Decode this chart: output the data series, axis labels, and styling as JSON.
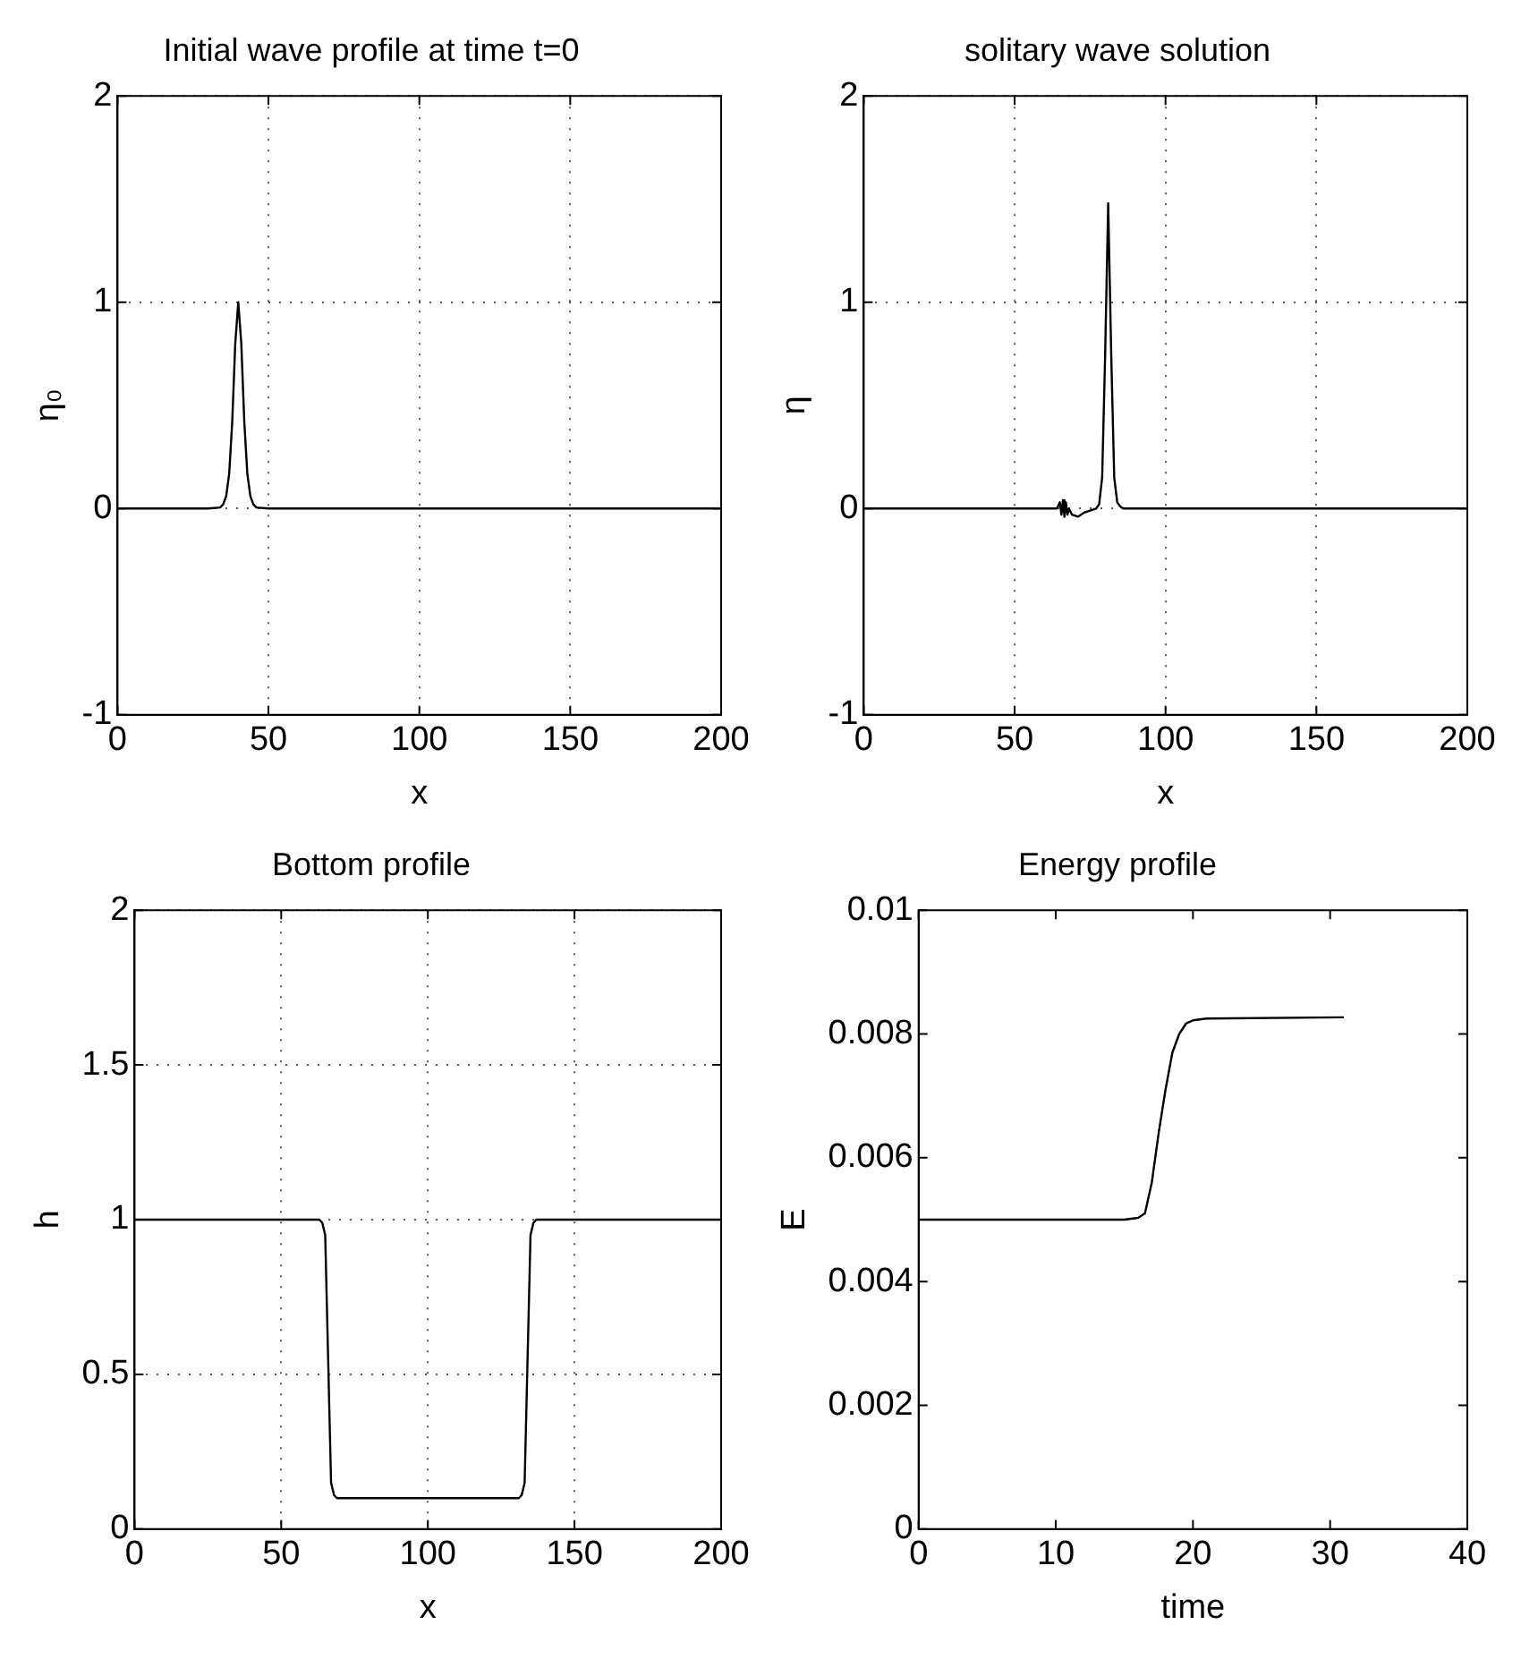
{
  "chart_data": [
    {
      "type": "line",
      "title": "Initial wave profile at time t=0",
      "xlabel": "x",
      "ylabel": "η₀",
      "xlim": [
        0,
        200
      ],
      "ylim": [
        -1,
        2
      ],
      "xticks": [
        0,
        50,
        100,
        150,
        200
      ],
      "yticks": [
        -1,
        0,
        1,
        2
      ],
      "grid": true,
      "marker": "none",
      "line_style": "solid",
      "series": [
        {
          "color": "#000000",
          "x": [
            0,
            30,
            34,
            35,
            36,
            37,
            38,
            39,
            40,
            41,
            42,
            43,
            44,
            45,
            46,
            50,
            200
          ],
          "values": [
            0,
            0,
            0.005,
            0.02,
            0.06,
            0.17,
            0.42,
            0.8,
            1,
            0.8,
            0.42,
            0.17,
            0.06,
            0.02,
            0.005,
            0,
            0
          ]
        }
      ]
    },
    {
      "type": "line",
      "title": "solitary wave solution",
      "xlabel": "x",
      "ylabel": "η",
      "xlim": [
        0,
        200
      ],
      "ylim": [
        -1,
        2
      ],
      "xticks": [
        0,
        50,
        100,
        150,
        200
      ],
      "yticks": [
        -1,
        0,
        1,
        2
      ],
      "grid": true,
      "marker": "none",
      "line_style": "solid",
      "series": [
        {
          "color": "#000000",
          "x": [
            0,
            64,
            65,
            65.5,
            66,
            66.5,
            67,
            67.5,
            68,
            69,
            71,
            73,
            75,
            77,
            78,
            79,
            80,
            81,
            82,
            83,
            84,
            85,
            86,
            90,
            200
          ],
          "values": [
            0,
            0,
            0.03,
            -0.03,
            0.04,
            -0.04,
            0.03,
            -0.03,
            0,
            -0.03,
            -0.04,
            -0.02,
            -0.01,
            0,
            0.02,
            0.15,
            0.75,
            1.48,
            0.75,
            0.15,
            0.03,
            0.01,
            0,
            0,
            0
          ]
        }
      ]
    },
    {
      "type": "line",
      "title": "Bottom profile",
      "xlabel": "x",
      "ylabel": "h",
      "xlim": [
        0,
        200
      ],
      "ylim": [
        0,
        2
      ],
      "xticks": [
        0,
        50,
        100,
        150,
        200
      ],
      "yticks": [
        0,
        0.5,
        1,
        1.5,
        2
      ],
      "grid": true,
      "marker": "none",
      "line_style": "solid",
      "series": [
        {
          "color": "#000000",
          "x": [
            0,
            63,
            64,
            65,
            66,
            67,
            68,
            69,
            100,
            131,
            132,
            133,
            134,
            135,
            136,
            137,
            200
          ],
          "values": [
            1,
            1,
            0.99,
            0.95,
            0.55,
            0.15,
            0.11,
            0.1,
            0.1,
            0.1,
            0.11,
            0.15,
            0.55,
            0.95,
            0.99,
            1,
            1
          ]
        }
      ]
    },
    {
      "type": "line",
      "title": "Energy profile",
      "xlabel": "time",
      "ylabel": "E",
      "xlim": [
        0,
        40
      ],
      "ylim": [
        0,
        0.01
      ],
      "xticks": [
        0,
        10,
        20,
        30,
        40
      ],
      "yticks": [
        0,
        0.002,
        0.004,
        0.006,
        0.008,
        0.01
      ],
      "grid": false,
      "marker": "none",
      "line_style": "solid",
      "series": [
        {
          "color": "#000000",
          "x": [
            0,
            15,
            16,
            16.5,
            17,
            17.5,
            18,
            18.5,
            19,
            19.5,
            20,
            21,
            31
          ],
          "values": [
            0.005,
            0.005,
            0.00503,
            0.0051,
            0.0056,
            0.0064,
            0.0071,
            0.0077,
            0.008,
            0.00817,
            0.00822,
            0.00825,
            0.00827
          ]
        }
      ]
    }
  ]
}
